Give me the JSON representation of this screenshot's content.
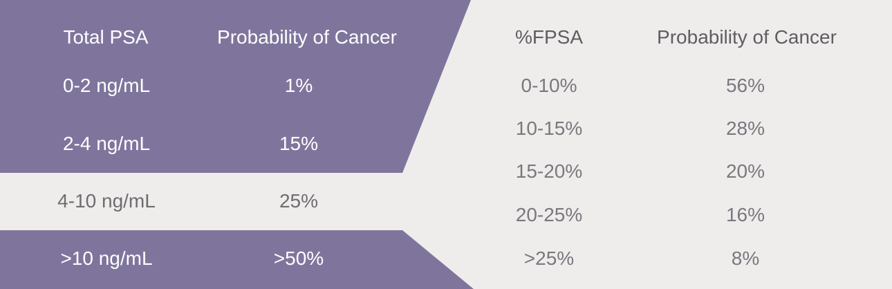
{
  "colors": {
    "purple": "#7f759c",
    "background": "#eeedec",
    "header_text_dark": "#5f5d62",
    "cell_text_dark": "#7a787d",
    "white_text": "#ffffff",
    "gray_text": "#6e6c70"
  },
  "left_table": {
    "headers": [
      "Total PSA",
      "Probability of Cancer"
    ],
    "rows": [
      [
        "0-2 ng/mL",
        "1%"
      ],
      [
        "2-4 ng/mL",
        "15%"
      ],
      [
        "4-10 ng/mL",
        "25%"
      ],
      [
        ">10 ng/mL",
        ">50%"
      ]
    ]
  },
  "right_table": {
    "headers": [
      "%FPSA",
      "Probability of Cancer"
    ],
    "rows": [
      [
        "0-10%",
        "56%"
      ],
      [
        "10-15%",
        "28%"
      ],
      [
        "15-20%",
        "20%"
      ],
      [
        "20-25%",
        "16%"
      ],
      [
        ">25%",
        "8%"
      ]
    ]
  }
}
